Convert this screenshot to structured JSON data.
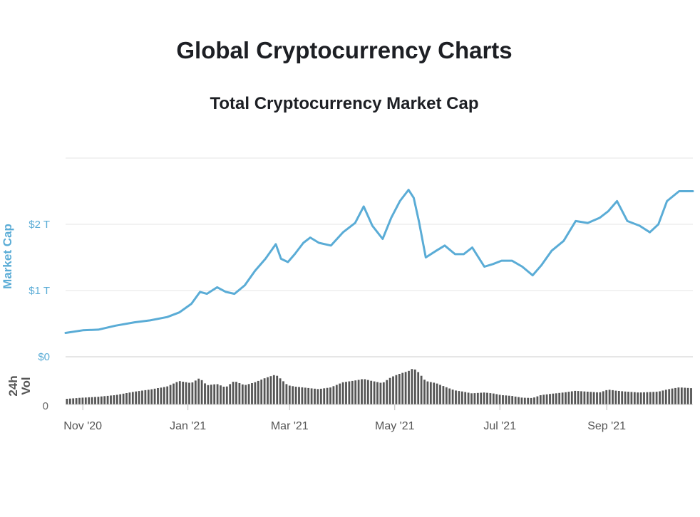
{
  "header": {
    "page_title": "Global Cryptocurrency Charts"
  },
  "chart_data": {
    "type": "line",
    "title": "Total Cryptocurrency Market Cap",
    "x_ticks": [
      "Nov '20",
      "Jan '21",
      "Mar '21",
      "May '21",
      "Jul '21",
      "Sep '21"
    ],
    "x_range": [
      "2020-10-22",
      "2021-10-21"
    ],
    "market_cap_axis": {
      "label": "Market Cap",
      "ticks": [
        "$0",
        "$1 T",
        "$2 T"
      ],
      "tick_values": [
        0,
        1,
        2
      ],
      "ylim": [
        0,
        3
      ],
      "unit": "T USD"
    },
    "volume_axis": {
      "label": "24h Vol",
      "ticks": [
        "0"
      ]
    },
    "colors": {
      "market_cap_line": "#5aacd6",
      "volume_bars": "#555555",
      "grid": "#e6e6e6"
    },
    "series": [
      {
        "name": "Market Cap",
        "x": [
          "2020-10-22",
          "2020-11-01",
          "2020-11-10",
          "2020-11-20",
          "2020-12-01",
          "2020-12-10",
          "2020-12-20",
          "2020-12-27",
          "2021-01-03",
          "2021-01-08",
          "2021-01-12",
          "2021-01-18",
          "2021-01-23",
          "2021-01-28",
          "2021-02-03",
          "2021-02-09",
          "2021-02-15",
          "2021-02-21",
          "2021-02-24",
          "2021-02-28",
          "2021-03-04",
          "2021-03-09",
          "2021-03-13",
          "2021-03-18",
          "2021-03-25",
          "2021-04-01",
          "2021-04-08",
          "2021-04-13",
          "2021-04-18",
          "2021-04-24",
          "2021-04-29",
          "2021-05-04",
          "2021-05-09",
          "2021-05-12",
          "2021-05-15",
          "2021-05-19",
          "2021-05-25",
          "2021-05-30",
          "2021-06-05",
          "2021-06-10",
          "2021-06-15",
          "2021-06-22",
          "2021-06-27",
          "2021-07-02",
          "2021-07-08",
          "2021-07-14",
          "2021-07-20",
          "2021-07-25",
          "2021-07-31",
          "2021-08-07",
          "2021-08-14",
          "2021-08-21",
          "2021-08-28",
          "2021-09-02",
          "2021-09-07",
          "2021-09-13",
          "2021-09-20",
          "2021-09-26",
          "2021-10-01",
          "2021-10-06",
          "2021-10-13",
          "2021-10-21"
        ],
        "values": [
          0.36,
          0.4,
          0.41,
          0.47,
          0.52,
          0.55,
          0.6,
          0.67,
          0.8,
          0.98,
          0.95,
          1.05,
          0.98,
          0.95,
          1.08,
          1.3,
          1.48,
          1.7,
          1.48,
          1.43,
          1.55,
          1.72,
          1.8,
          1.72,
          1.68,
          1.88,
          2.02,
          2.27,
          1.98,
          1.78,
          2.1,
          2.35,
          2.52,
          2.4,
          2.05,
          1.5,
          1.6,
          1.68,
          1.55,
          1.55,
          1.65,
          1.36,
          1.4,
          1.45,
          1.45,
          1.36,
          1.23,
          1.38,
          1.6,
          1.75,
          2.05,
          2.02,
          2.1,
          2.2,
          2.35,
          2.05,
          1.98,
          1.88,
          2.0,
          2.35,
          2.5,
          2.5
        ]
      },
      {
        "name": "24h Vol",
        "values": [
          0.13,
          0.16,
          0.18,
          0.22,
          0.3,
          0.35,
          0.42,
          0.55,
          0.5,
          0.62,
          0.45,
          0.48,
          0.4,
          0.55,
          0.45,
          0.52,
          0.62,
          0.7,
          0.6,
          0.45,
          0.42,
          0.4,
          0.38,
          0.36,
          0.4,
          0.52,
          0.56,
          0.6,
          0.55,
          0.5,
          0.64,
          0.72,
          0.78,
          0.85,
          0.75,
          0.55,
          0.5,
          0.42,
          0.33,
          0.3,
          0.26,
          0.28,
          0.26,
          0.22,
          0.2,
          0.16,
          0.15,
          0.22,
          0.25,
          0.28,
          0.32,
          0.3,
          0.28,
          0.35,
          0.32,
          0.3,
          0.28,
          0.29,
          0.3,
          0.35,
          0.4,
          0.38
        ]
      }
    ]
  }
}
